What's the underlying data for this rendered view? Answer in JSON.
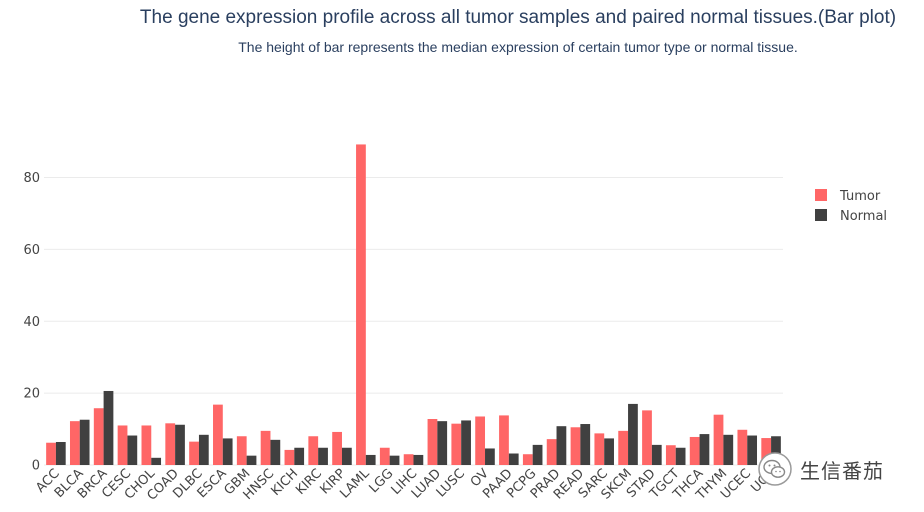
{
  "chart_data": {
    "type": "bar",
    "title": "The gene expression profile across all tumor samples and paired normal tissues.(Bar plot)",
    "subtitle": "The height of bar represents the median expression of certain tumor type or normal tissue.",
    "xlabel": "",
    "ylabel": "",
    "ylim": [
      0,
      96
    ],
    "yticks": [
      0,
      20,
      40,
      60,
      80
    ],
    "grid": true,
    "legend_position": "top-right",
    "categories": [
      "ACC",
      "BLCA",
      "BRCA",
      "CESC",
      "CHOL",
      "COAD",
      "DLBC",
      "ESCA",
      "GBM",
      "HNSC",
      "KICH",
      "KIRC",
      "KIRP",
      "LAML",
      "LGG",
      "LIHC",
      "LUAD",
      "LUSC",
      "OV",
      "PAAD",
      "PCPG",
      "PRAD",
      "READ",
      "SARC",
      "SKCM",
      "STAD",
      "TGCT",
      "THCA",
      "THYM",
      "UCEC",
      "UCS"
    ],
    "series": [
      {
        "name": "Tumor",
        "color": "#ff6666",
        "values": [
          6.2,
          12.2,
          15.8,
          11.0,
          11.0,
          11.6,
          6.5,
          16.8,
          8.0,
          9.5,
          4.2,
          8.0,
          9.2,
          89.2,
          4.8,
          3.0,
          12.8,
          11.5,
          13.5,
          13.8,
          3.0,
          7.2,
          10.5,
          8.8,
          9.5,
          15.2,
          5.5,
          7.8,
          14.0,
          9.8,
          7.5
        ]
      },
      {
        "name": "Normal",
        "color": "#404040",
        "values": [
          6.4,
          12.6,
          20.6,
          8.2,
          2.0,
          11.2,
          8.4,
          7.4,
          2.6,
          7.0,
          4.8,
          4.8,
          4.8,
          2.8,
          2.6,
          2.8,
          12.2,
          12.4,
          4.6,
          3.2,
          5.6,
          10.8,
          11.4,
          7.4,
          17.0,
          5.6,
          4.8,
          8.6,
          8.4,
          8.2,
          8.0
        ]
      }
    ]
  },
  "watermark": {
    "icon": "wechat-icon",
    "text": "生信番茄"
  }
}
